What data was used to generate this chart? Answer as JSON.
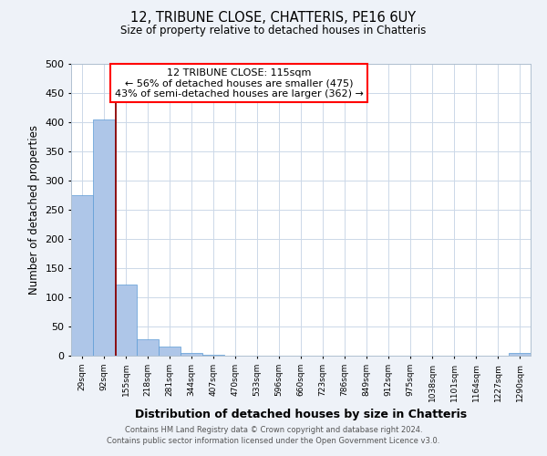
{
  "title": "12, TRIBUNE CLOSE, CHATTERIS, PE16 6UY",
  "subtitle": "Size of property relative to detached houses in Chatteris",
  "xlabel": "Distribution of detached houses by size in Chatteris",
  "ylabel": "Number of detached properties",
  "categories": [
    "29sqm",
    "92sqm",
    "155sqm",
    "218sqm",
    "281sqm",
    "344sqm",
    "407sqm",
    "470sqm",
    "533sqm",
    "596sqm",
    "660sqm",
    "723sqm",
    "786sqm",
    "849sqm",
    "912sqm",
    "975sqm",
    "1038sqm",
    "1101sqm",
    "1164sqm",
    "1227sqm",
    "1290sqm"
  ],
  "values": [
    275,
    405,
    122,
    28,
    15,
    5,
    1,
    0,
    0,
    0,
    0,
    0,
    0,
    0,
    0,
    0,
    0,
    0,
    0,
    0,
    5
  ],
  "bar_color": "#aec6e8",
  "bar_edge_color": "#5b9bd5",
  "red_line_x": 1.56,
  "annotation_title": "12 TRIBUNE CLOSE: 115sqm",
  "annotation_line1": "← 56% of detached houses are smaller (475)",
  "annotation_line2": "43% of semi-detached houses are larger (362) →",
  "ylim": [
    0,
    500
  ],
  "yticks": [
    0,
    50,
    100,
    150,
    200,
    250,
    300,
    350,
    400,
    450,
    500
  ],
  "footer1": "Contains HM Land Registry data © Crown copyright and database right 2024.",
  "footer2": "Contains public sector information licensed under the Open Government Licence v3.0.",
  "bg_color": "#eef2f8",
  "plot_bg_color": "#ffffff",
  "grid_color": "#ccd8e8"
}
